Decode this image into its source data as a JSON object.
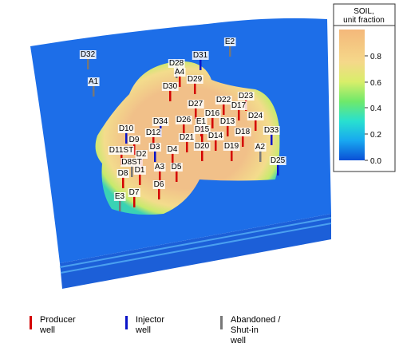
{
  "wells": [
    "D32",
    "E2",
    "A1",
    "D31",
    "D28",
    "A4",
    "D29",
    "D30",
    "D27",
    "D22",
    "D23",
    "D17",
    "D16",
    "D24",
    "D34",
    "D26",
    "E1",
    "D13",
    "D10",
    "D15",
    "D12",
    "D33",
    "D9",
    "D21",
    "D14",
    "D18",
    "D11ST",
    "D3",
    "D20",
    "D19",
    "A2",
    "D2",
    "D4",
    "D8ST",
    "A3",
    "D5",
    "D25",
    "D1",
    "D8",
    "D6",
    "D7",
    "E3"
  ],
  "colorbar": {
    "title": [
      "SOIL,",
      "unit fraction"
    ],
    "ticks": [
      "0.8",
      "0.6",
      "0.4",
      "0.2",
      "0.0"
    ]
  },
  "legend": [
    {
      "lines": [
        "Producer",
        "well"
      ]
    },
    {
      "lines": [
        "Injector",
        "well"
      ]
    },
    {
      "lines": [
        "Abandoned /",
        "Shut-in",
        "well"
      ]
    }
  ]
}
